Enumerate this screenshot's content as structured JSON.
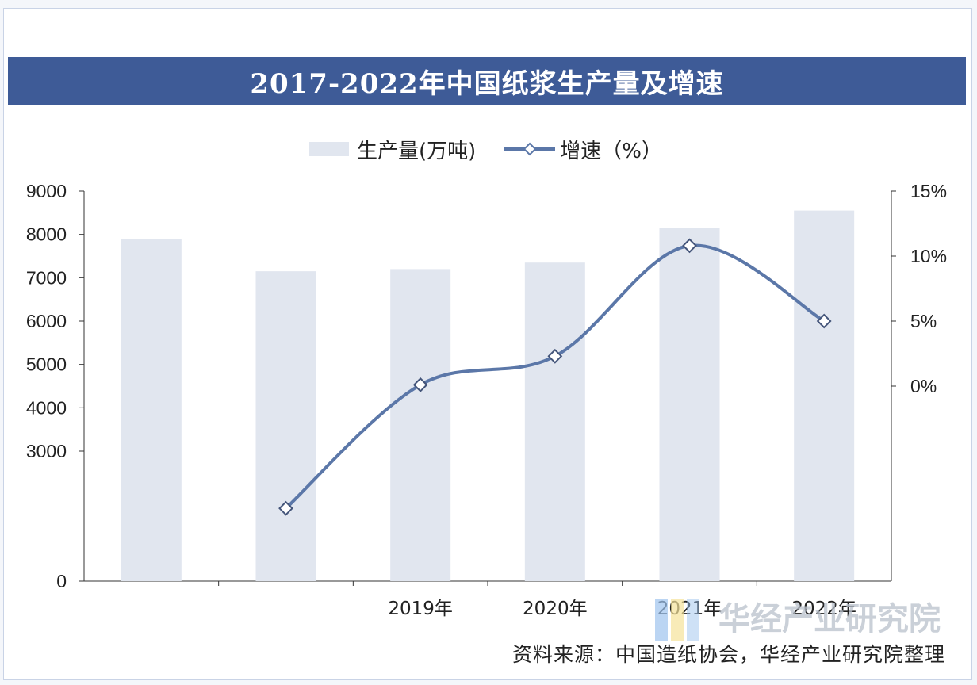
{
  "title": "2017-2022年中国纸浆生产量及增速",
  "legend": {
    "bar_label": "生产量(万吨)",
    "line_label": "增速（%）"
  },
  "source": "资料来源：中国造纸协会，华经产业研究院整理",
  "watermark": "华经产业研究院",
  "colors": {
    "title_bg": "#3e5b97",
    "bar": "#e1e6ef",
    "line": "#5b77a8"
  },
  "chart_data": {
    "type": "bar",
    "categories": [
      "",
      "",
      "2019年",
      "2020年",
      "2021年",
      "2022年"
    ],
    "series": [
      {
        "name": "生产量(万吨)",
        "type": "bar",
        "axis": "left",
        "values": [
          7900,
          7150,
          7200,
          7350,
          8150,
          8550
        ]
      },
      {
        "name": "增速（%）",
        "type": "line",
        "axis": "right",
        "values": [
          null,
          -9.4,
          0.1,
          2.3,
          10.8,
          5.0
        ]
      }
    ],
    "y_left": {
      "ticks": [
        0,
        3000,
        4000,
        5000,
        6000,
        7000,
        8000,
        9000
      ],
      "range": [
        0,
        9000
      ]
    },
    "y_right": {
      "ticks": [
        "0%",
        "5%",
        "10%",
        "15%"
      ],
      "range_percent": [
        -15,
        15
      ]
    },
    "grid": false,
    "legend_position": "top"
  }
}
